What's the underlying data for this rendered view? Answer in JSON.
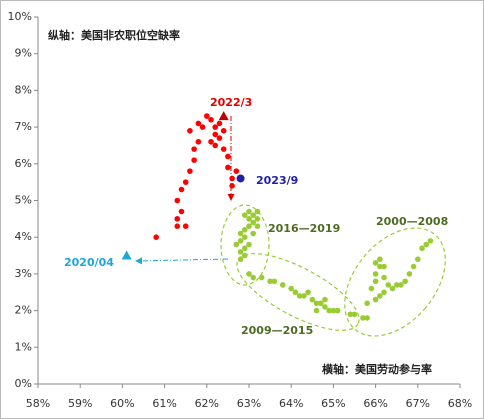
{
  "chart_data": {
    "type": "scatter",
    "xlim": [
      58,
      68
    ],
    "ylim": [
      0,
      10
    ],
    "xticks": [
      {
        "value": 58,
        "label": "58%"
      },
      {
        "value": 59,
        "label": "59%"
      },
      {
        "value": 60,
        "label": "60%"
      },
      {
        "value": 61,
        "label": "61%"
      },
      {
        "value": 62,
        "label": "62%"
      },
      {
        "value": 63,
        "label": "63%"
      },
      {
        "value": 64,
        "label": "64%"
      },
      {
        "value": 65,
        "label": "65%"
      },
      {
        "value": 66,
        "label": "66%"
      },
      {
        "value": 67,
        "label": "67%"
      },
      {
        "value": 68,
        "label": "68%"
      }
    ],
    "yticks": [
      {
        "value": 0,
        "label": "0%"
      },
      {
        "value": 1,
        "label": "1%"
      },
      {
        "value": 2,
        "label": "2%"
      },
      {
        "value": 3,
        "label": "3%"
      },
      {
        "value": 4,
        "label": "4%"
      },
      {
        "value": 5,
        "label": "5%"
      },
      {
        "value": 6,
        "label": "6%"
      },
      {
        "value": 7,
        "label": "7%"
      },
      {
        "value": 8,
        "label": "8%"
      },
      {
        "value": 9,
        "label": "9%"
      },
      {
        "value": 10,
        "label": "10%"
      }
    ],
    "y_label": "纵轴：美国非农职位空缺率",
    "x_label": "横轴：美国劳动参与率",
    "annotations": [
      "2022/3",
      "2023/9",
      "2020/04",
      "2016—2019",
      "2000—2008",
      "2009—2015"
    ],
    "series": [
      {
        "color": "#ff0000",
        "marker": "circle",
        "x": [
          60.8,
          61.3,
          61.3,
          61.5,
          61.4,
          61.3,
          61.4,
          61.5,
          61.6,
          61.7,
          61.7,
          61.6,
          61.8,
          61.9,
          61.8,
          62.0,
          62.1,
          62.2,
          62.2,
          62.3,
          62.3,
          62.2,
          62.4,
          62.5,
          62.5,
          62.6,
          62.6,
          62.7,
          62.1,
          62.4
        ],
        "values": [
          4.0,
          4.3,
          4.5,
          4.3,
          4.7,
          5.0,
          5.3,
          5.5,
          5.8,
          6.1,
          6.4,
          6.9,
          6.6,
          7.0,
          7.1,
          7.3,
          7.2,
          7.0,
          6.8,
          7.1,
          6.7,
          6.5,
          6.4,
          6.2,
          5.9,
          5.6,
          5.4,
          5.8,
          6.6,
          6.9
        ]
      },
      {
        "color": "#99cc33",
        "marker": "circle",
        "x": [
          62.8,
          62.8,
          62.9,
          62.8,
          62.9,
          63.0,
          62.9,
          63.0,
          63.0,
          63.1,
          63.1,
          63.2,
          63.2,
          63.0,
          62.9,
          63.1,
          62.7,
          62.8,
          63.2,
          62.9,
          63.0,
          63.1,
          63.3,
          63.5,
          63.6,
          63.8,
          64.0,
          64.1,
          64.2,
          64.3,
          64.5,
          64.6,
          64.7,
          64.8,
          64.9,
          65.0,
          65.1,
          65.4,
          65.5,
          65.7,
          65.8,
          64.4,
          64.6,
          64.8,
          65.8,
          66.0,
          65.9,
          66.0,
          66.0,
          66.1,
          66.1,
          66.2,
          66.2,
          66.3,
          66.2,
          66.4,
          66.5,
          66.6,
          66.7,
          66.8,
          66.9,
          67.0,
          67.1,
          67.2,
          67.3,
          66.0,
          66.1
        ],
        "values": [
          3.4,
          3.6,
          3.7,
          3.9,
          4.0,
          3.8,
          4.2,
          4.3,
          4.5,
          4.4,
          4.6,
          4.5,
          4.7,
          4.7,
          4.6,
          4.1,
          3.8,
          4.1,
          4.3,
          3.5,
          3.0,
          2.9,
          2.9,
          2.8,
          2.8,
          2.7,
          2.6,
          2.5,
          2.4,
          2.4,
          2.3,
          2.2,
          2.2,
          2.1,
          2.0,
          2.0,
          2.0,
          1.9,
          1.9,
          1.8,
          1.8,
          2.5,
          2.0,
          2.3,
          2.2,
          2.3,
          2.6,
          2.8,
          3.0,
          3.2,
          3.4,
          3.2,
          2.9,
          2.7,
          2.5,
          2.6,
          2.7,
          2.7,
          2.8,
          3.0,
          3.2,
          3.4,
          3.7,
          3.8,
          3.9,
          3.3,
          2.4
        ]
      },
      {
        "color": "#c00000",
        "marker": "triangle",
        "x": [
          62.4
        ],
        "values": [
          7.3
        ]
      },
      {
        "color": "#1f1fa8",
        "marker": "circle",
        "x": [
          62.8
        ],
        "values": [
          5.6
        ]
      },
      {
        "color": "#1ea6d8",
        "marker": "triangle",
        "x": [
          60.1
        ],
        "values": [
          3.5
        ]
      }
    ]
  }
}
